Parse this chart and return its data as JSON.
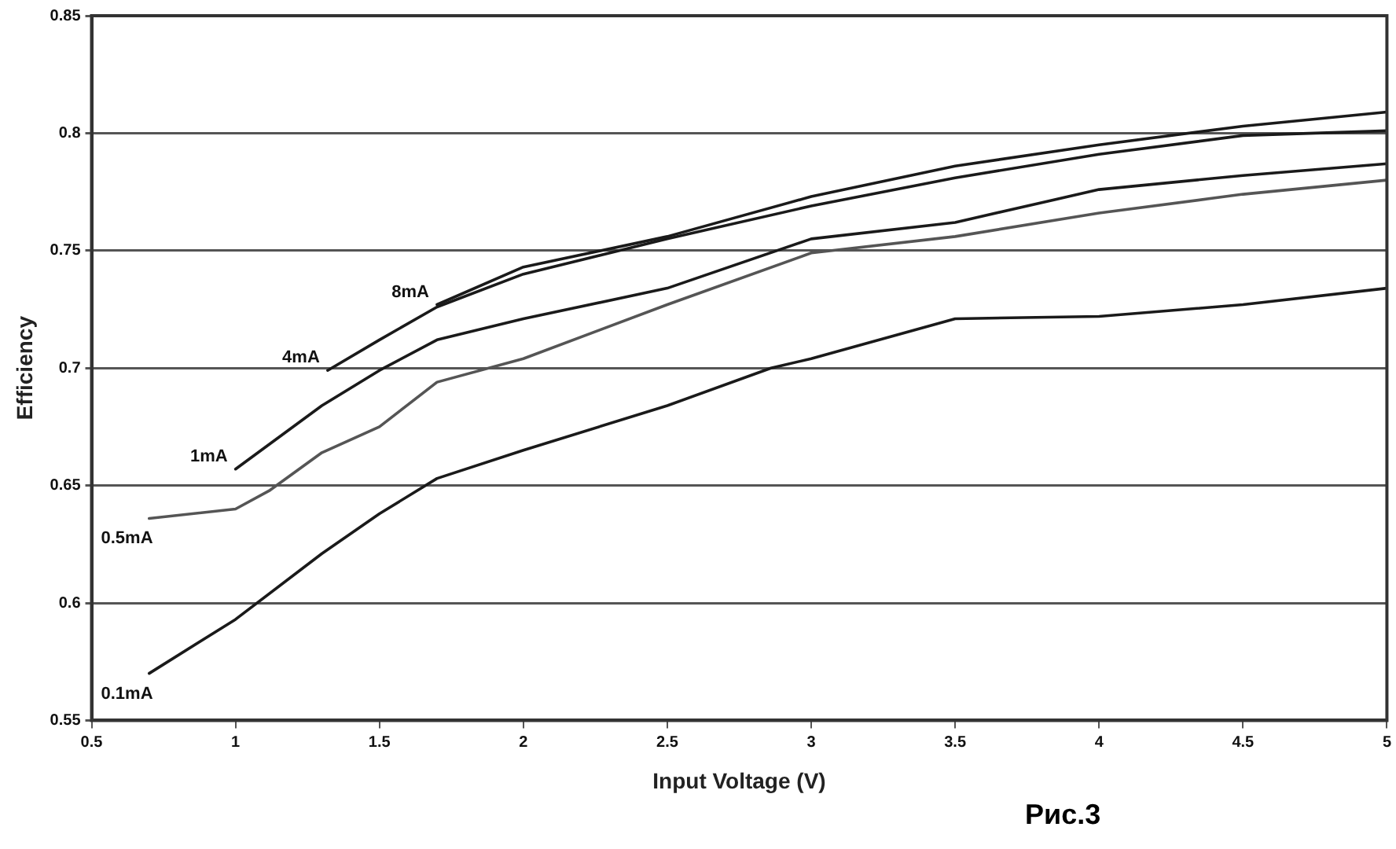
{
  "chart_data": {
    "type": "line",
    "xlabel": "Input Voltage (V)",
    "ylabel": "Efficiency",
    "annotations": [
      "Рис.3"
    ],
    "xlim": [
      0.5,
      5
    ],
    "xticks": [
      0.5,
      1,
      1.5,
      2,
      2.5,
      3,
      3.5,
      4,
      4.5,
      5
    ],
    "ylim": [
      0.55,
      0.85
    ],
    "yticks": [
      0.55,
      0.6,
      0.65,
      0.7,
      0.75,
      0.8,
      0.85
    ],
    "grid": "y",
    "legend": false,
    "marker": "none",
    "line_style": "solid",
    "series": [
      {
        "name": "8mA",
        "color": "#1a1a1a",
        "x": [
          1.7,
          2,
          2.5,
          3,
          3.5,
          4,
          4.5,
          5
        ],
        "values": [
          0.727,
          0.743,
          0.756,
          0.773,
          0.786,
          0.795,
          0.803,
          0.809
        ]
      },
      {
        "name": "4mA",
        "color": "#1a1a1a",
        "x": [
          1.32,
          1.5,
          1.7,
          2,
          2.5,
          3,
          3.5,
          4,
          4.5,
          5
        ],
        "values": [
          0.699,
          0.712,
          0.726,
          0.74,
          0.755,
          0.769,
          0.781,
          0.791,
          0.799,
          0.801
        ]
      },
      {
        "name": "1mA",
        "color": "#1a1a1a",
        "x": [
          1,
          1.3,
          1.5,
          1.7,
          2,
          2.5,
          3,
          3.5,
          4,
          4.5,
          5
        ],
        "values": [
          0.657,
          0.684,
          0.699,
          0.712,
          0.721,
          0.734,
          0.755,
          0.762,
          0.776,
          0.782,
          0.787
        ]
      },
      {
        "name": "0.5mA",
        "color": "#555555",
        "x": [
          0.7,
          1,
          1.12,
          1.3,
          1.5,
          1.7,
          2,
          2.5,
          3,
          3.5,
          4,
          4.5,
          5
        ],
        "values": [
          0.636,
          0.64,
          0.648,
          0.664,
          0.675,
          0.694,
          0.704,
          0.727,
          0.749,
          0.756,
          0.766,
          0.774,
          0.78
        ]
      },
      {
        "name": "0.1mA",
        "color": "#1a1a1a",
        "x": [
          0.7,
          1,
          1.3,
          1.5,
          1.7,
          2,
          2.5,
          2.86,
          3,
          3.5,
          4,
          4.5,
          5
        ],
        "values": [
          0.57,
          0.593,
          0.621,
          0.638,
          0.653,
          0.665,
          0.684,
          0.7,
          0.704,
          0.721,
          0.722,
          0.727,
          0.734
        ]
      }
    ]
  }
}
